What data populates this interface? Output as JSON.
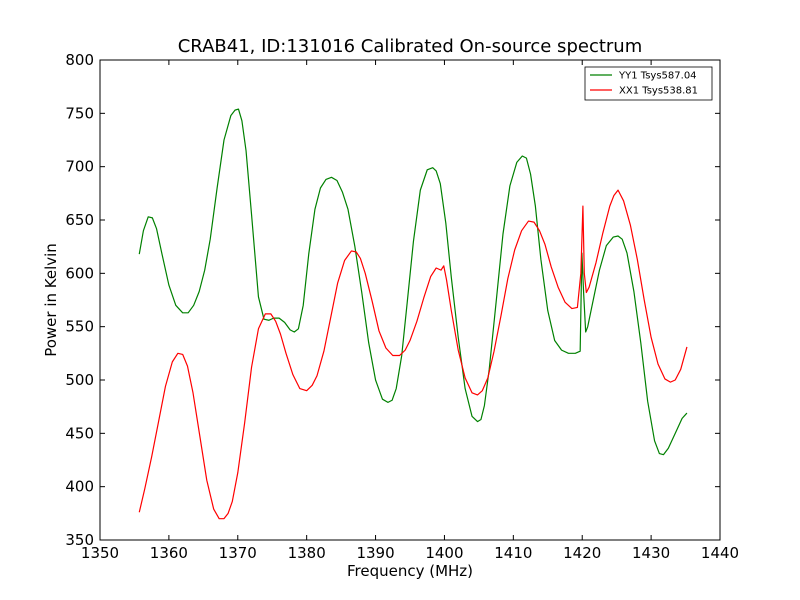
{
  "chart_data": {
    "type": "line",
    "title": "CRAB41, ID:131016 Calibrated On-source spectrum",
    "xlabel": "Frequency (MHz)",
    "ylabel": "Power in Kelvin",
    "xlim": [
      1350,
      1440
    ],
    "ylim": [
      350,
      800
    ],
    "xticks": [
      1350,
      1360,
      1370,
      1380,
      1390,
      1400,
      1410,
      1420,
      1430,
      1440
    ],
    "yticks": [
      350,
      400,
      450,
      500,
      550,
      600,
      650,
      700,
      750,
      800
    ],
    "grid": false,
    "legend_position": "top-right",
    "series": [
      {
        "name": "YY1 Tsys587.04",
        "color": "#008000",
        "x": [
          1355.7,
          1356.3,
          1357.0,
          1357.6,
          1358.2,
          1359.0,
          1360.0,
          1361.0,
          1362.0,
          1362.8,
          1363.6,
          1364.4,
          1365.2,
          1366.0,
          1367.0,
          1368.0,
          1369.0,
          1369.6,
          1370.1,
          1370.6,
          1371.2,
          1372.0,
          1373.0,
          1373.8,
          1374.5,
          1375.2,
          1376.0,
          1376.8,
          1377.6,
          1378.2,
          1378.8,
          1379.5,
          1380.3,
          1381.2,
          1382.0,
          1382.8,
          1383.6,
          1384.4,
          1385.2,
          1386.0,
          1387.0,
          1388.0,
          1389.0,
          1390.0,
          1391.0,
          1391.8,
          1392.4,
          1393.0,
          1393.8,
          1394.6,
          1395.5,
          1396.5,
          1397.5,
          1398.3,
          1398.8,
          1399.4,
          1400.2,
          1401.0,
          1402.0,
          1403.0,
          1404.0,
          1404.8,
          1405.3,
          1405.8,
          1406.5,
          1407.5,
          1408.5,
          1409.5,
          1410.5,
          1411.3,
          1411.9,
          1412.5,
          1413.2,
          1414.0,
          1415.0,
          1416.0,
          1417.0,
          1418.0,
          1419.0,
          1419.7,
          1419.95,
          1420.2,
          1420.5,
          1420.8,
          1421.5,
          1422.5,
          1423.5,
          1424.5,
          1425.2,
          1425.8,
          1426.5,
          1427.5,
          1428.5,
          1429.5,
          1430.5,
          1431.2,
          1431.8,
          1432.5,
          1433.5,
          1434.5,
          1435.2
        ],
        "values": [
          618,
          640,
          653,
          652,
          642,
          618,
          589,
          570,
          563,
          563,
          570,
          583,
          603,
          632,
          680,
          725,
          748,
          753,
          754,
          743,
          715,
          655,
          578,
          557,
          556,
          558,
          558,
          554,
          547,
          545,
          548,
          570,
          618,
          660,
          680,
          688,
          690,
          687,
          676,
          660,
          625,
          582,
          535,
          500,
          482,
          479,
          481,
          492,
          523,
          573,
          630,
          678,
          697,
          699,
          696,
          684,
          647,
          596,
          540,
          492,
          466,
          461,
          463,
          476,
          510,
          573,
          637,
          682,
          704,
          710,
          708,
          693,
          663,
          613,
          565,
          537,
          528,
          525,
          525,
          527,
          619,
          582,
          545,
          550,
          572,
          603,
          626,
          634,
          635,
          632,
          619,
          583,
          535,
          480,
          443,
          431,
          430,
          436,
          450,
          464,
          469
        ]
      },
      {
        "name": "XX1 Tsys538.81",
        "color": "#ff0000",
        "x": [
          1355.7,
          1356.5,
          1357.5,
          1358.5,
          1359.5,
          1360.5,
          1361.3,
          1362.0,
          1362.7,
          1363.5,
          1364.5,
          1365.5,
          1366.5,
          1367.3,
          1368.0,
          1368.6,
          1369.2,
          1370.0,
          1371.0,
          1372.0,
          1373.0,
          1374.0,
          1374.8,
          1375.5,
          1376.2,
          1377.0,
          1378.0,
          1379.0,
          1380.0,
          1380.8,
          1381.5,
          1382.5,
          1383.5,
          1384.5,
          1385.5,
          1386.5,
          1387.2,
          1387.8,
          1388.5,
          1389.5,
          1390.5,
          1391.5,
          1392.5,
          1393.5,
          1394.3,
          1395.0,
          1396.0,
          1397.0,
          1398.0,
          1398.8,
          1399.5,
          1399.9,
          1400.3,
          1401.0,
          1402.0,
          1403.0,
          1404.0,
          1404.8,
          1405.5,
          1406.3,
          1407.2,
          1408.2,
          1409.2,
          1410.2,
          1411.2,
          1412.2,
          1413.0,
          1413.8,
          1414.6,
          1415.5,
          1416.5,
          1417.5,
          1418.5,
          1419.3,
          1419.8,
          1420.1,
          1420.3,
          1420.6,
          1421.0,
          1422.0,
          1423.0,
          1424.0,
          1424.6,
          1425.2,
          1426.0,
          1427.0,
          1428.0,
          1429.0,
          1430.0,
          1431.0,
          1432.0,
          1432.8,
          1433.5,
          1434.3,
          1435.2
        ],
        "values": [
          376,
          398,
          428,
          461,
          494,
          517,
          525,
          524,
          513,
          488,
          447,
          406,
          379,
          370,
          370,
          375,
          386,
          413,
          460,
          512,
          548,
          562,
          562,
          555,
          543,
          525,
          505,
          492,
          490,
          495,
          504,
          527,
          559,
          591,
          612,
          621,
          620,
          614,
          600,
          574,
          546,
          530,
          523,
          523,
          528,
          537,
          555,
          577,
          597,
          605,
          603,
          607,
          594,
          565,
          528,
          502,
          488,
          486,
          490,
          502,
          527,
          560,
          595,
          622,
          640,
          649,
          648,
          640,
          627,
          606,
          587,
          573,
          567,
          568,
          600,
          663,
          600,
          582,
          587,
          610,
          638,
          663,
          673,
          678,
          668,
          645,
          613,
          575,
          540,
          515,
          501,
          498,
          500,
          510,
          531
        ]
      }
    ]
  }
}
